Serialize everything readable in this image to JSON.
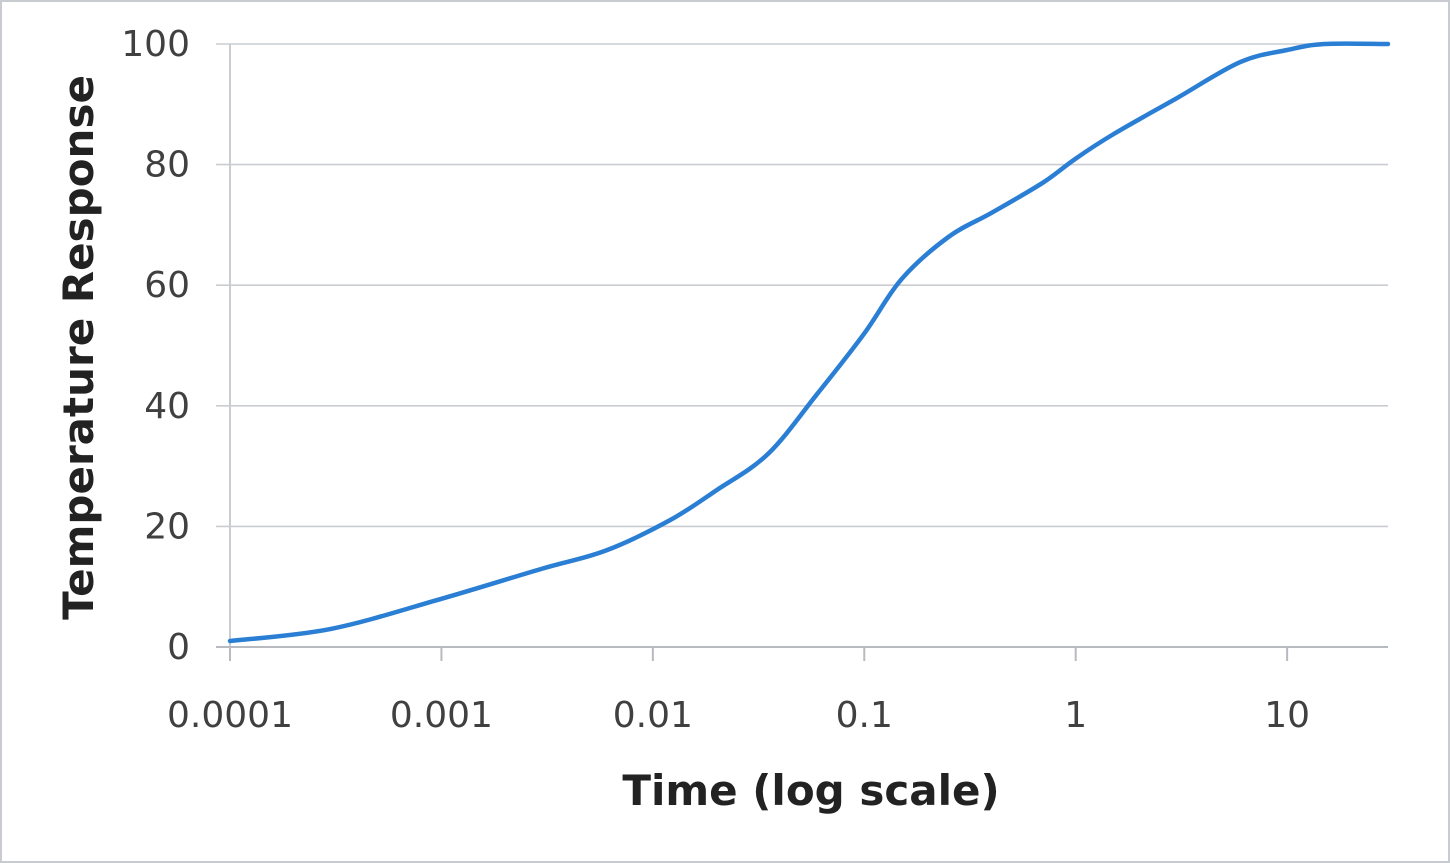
{
  "chart_data": {
    "type": "line",
    "title": "",
    "xlabel": "Time (log scale)",
    "ylabel": "Temperature Response",
    "x_scale": "log",
    "xlim": [
      0.0001,
      30
    ],
    "ylim": [
      0,
      100
    ],
    "x_ticks": [
      0.0001,
      0.001,
      0.01,
      0.1,
      1,
      10
    ],
    "x_tick_labels": [
      "0.0001",
      "0.001",
      "0.01",
      "0.1",
      "1",
      "10"
    ],
    "y_ticks": [
      0,
      20,
      40,
      60,
      80,
      100
    ],
    "y_tick_labels": [
      "0",
      "20",
      "40",
      "60",
      "80",
      "100"
    ],
    "grid": "horizontal",
    "legend": "none",
    "series": [
      {
        "color": "#2a7fd4",
        "x": [
          0.0001,
          0.0003,
          0.001,
          0.003,
          0.006,
          0.012,
          0.02,
          0.035,
          0.06,
          0.1,
          0.15,
          0.25,
          0.4,
          0.7,
          1,
          1.5,
          3,
          6,
          10,
          15,
          30
        ],
        "y": [
          1,
          3,
          8,
          13,
          16,
          21,
          26,
          32,
          42,
          52,
          61,
          68,
          72,
          77,
          81,
          85,
          91,
          97,
          99,
          100,
          100
        ]
      }
    ]
  }
}
